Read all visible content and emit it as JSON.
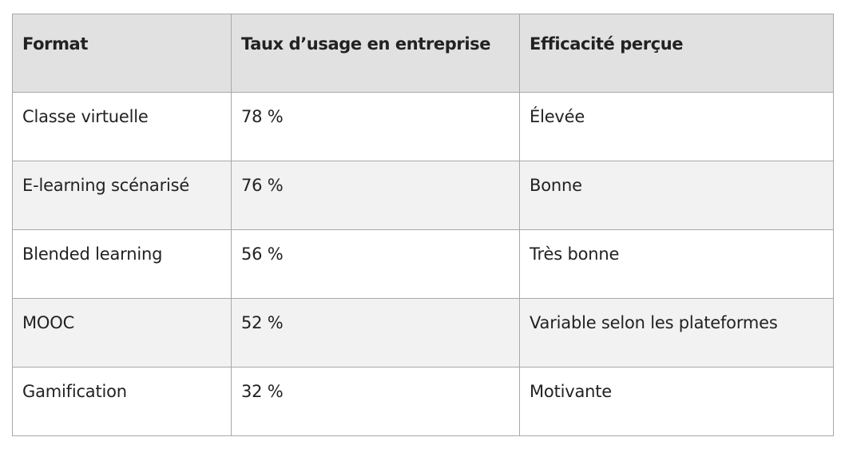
{
  "table": {
    "headers": [
      "Format",
      "Taux d’usage en entreprise",
      "Efficacité perçue"
    ],
    "rows": [
      [
        "Classe virtuelle",
        "78 %",
        "Élevée"
      ],
      [
        "E-learning scénarisé",
        "76 %",
        "Bonne"
      ],
      [
        "Blended learning",
        "56 %",
        "Très bonne"
      ],
      [
        "MOOC",
        "52 %",
        "Variable selon les plateformes"
      ],
      [
        "Gamification",
        "32 %",
        "Motivante"
      ]
    ]
  },
  "colors": {
    "header_bg": "#e1e1e1",
    "stripe_bg": "#f2f2f2",
    "border": "#a8a8a8",
    "text": "#222222"
  }
}
